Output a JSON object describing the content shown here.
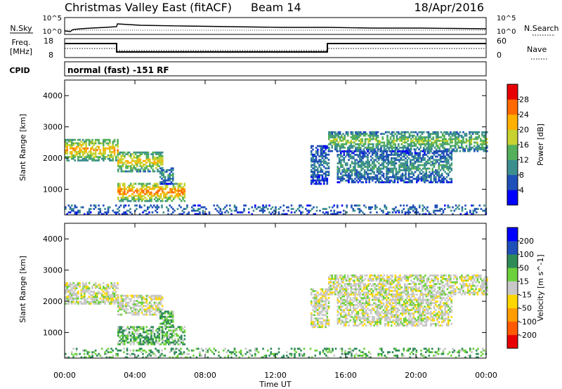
{
  "header": {
    "title": "Christmas Valley East (fitACF)",
    "beam": "Beam 14",
    "date": "18/Apr/2016"
  },
  "status_panel": {
    "nsky_label": "N.Sky",
    "nsearch_label": "N.Search",
    "freq_label_1": "Freq.",
    "freq_label_2": "[MHz]",
    "nave_label": "Nave",
    "cpid_label": "CPID",
    "cpid_text": "normal (fast) -151 RF",
    "nsky_ticks": [
      "10^5",
      "10^0"
    ],
    "nsearch_ticks": [
      "10^5",
      "10^0"
    ],
    "freq_ticks": [
      "18",
      "8"
    ],
    "nave_ticks": [
      "60",
      "0"
    ]
  },
  "chart_data": [
    {
      "type": "heatmap",
      "name": "power",
      "xlabel": "Time UT",
      "ylabel": "Slant Range [km]",
      "xlim": [
        0,
        24
      ],
      "ylim": [
        180,
        4500
      ],
      "x_ticks": [
        "00:00",
        "04:00",
        "08:00",
        "12:00",
        "16:00",
        "20:00",
        "00:00"
      ],
      "y_ticks": [
        1000,
        2000,
        3000,
        4000
      ],
      "colorbar": {
        "label": "Power [dB]",
        "ticks": [
          4,
          8,
          12,
          16,
          20,
          24,
          28
        ],
        "colors": [
          "#0000ff",
          "#1f4fb8",
          "#3d8f8f",
          "#55b05b",
          "#c8d230",
          "#ffb000",
          "#ff6a00",
          "#e80000"
        ],
        "range": [
          0,
          32
        ]
      },
      "regions": [
        {
          "t": [
            0.0,
            3.0
          ],
          "r": [
            1900,
            2600
          ],
          "level": 20
        },
        {
          "t": [
            3.0,
            5.6
          ],
          "r": [
            1550,
            2200
          ],
          "level": 18
        },
        {
          "t": [
            3.0,
            6.8
          ],
          "r": [
            600,
            1200
          ],
          "level": 22
        },
        {
          "t": [
            5.4,
            6.2
          ],
          "r": [
            1150,
            1700
          ],
          "level": 10
        },
        {
          "t": [
            14.0,
            15.0
          ],
          "r": [
            1150,
            2400
          ],
          "level": 8
        },
        {
          "t": [
            15.0,
            24.0
          ],
          "r": [
            2200,
            2850
          ],
          "level": 14
        },
        {
          "t": [
            15.5,
            22.0
          ],
          "r": [
            1200,
            2200
          ],
          "level": 10
        },
        {
          "t": [
            0.0,
            24.0
          ],
          "r": [
            180,
            500
          ],
          "level": 8
        }
      ]
    },
    {
      "type": "heatmap",
      "name": "velocity",
      "xlabel": "Time UT",
      "ylabel": "Slant Range [km]",
      "xlim": [
        0,
        24
      ],
      "ylim": [
        180,
        4500
      ],
      "x_ticks": [
        "00:00",
        "04:00",
        "08:00",
        "12:00",
        "16:00",
        "20:00",
        "00:00"
      ],
      "y_ticks": [
        1000,
        2000,
        3000,
        4000
      ],
      "colorbar": {
        "label": "Velocity [m s^-1]",
        "ticks": [
          200,
          100,
          50,
          15,
          -15,
          -50,
          -100,
          -200
        ],
        "colors": [
          "#0000ff",
          "#1f4fb8",
          "#2e8b57",
          "#6cd13a",
          "#c8c8c8",
          "#ffd700",
          "#ff9d00",
          "#ff5a00",
          "#e80000"
        ]
      },
      "regions": [
        {
          "t": [
            0.0,
            3.0
          ],
          "r": [
            1900,
            2600
          ],
          "velocity": 0
        },
        {
          "t": [
            3.0,
            5.6
          ],
          "r": [
            1550,
            2200
          ],
          "velocity": 0
        },
        {
          "t": [
            3.0,
            6.8
          ],
          "r": [
            600,
            1200
          ],
          "velocity": 30
        },
        {
          "t": [
            5.4,
            6.2
          ],
          "r": [
            1150,
            1700
          ],
          "velocity": 30
        },
        {
          "t": [
            14.0,
            15.0
          ],
          "r": [
            1150,
            2400
          ],
          "velocity": 0
        },
        {
          "t": [
            15.0,
            24.0
          ],
          "r": [
            2200,
            2850
          ],
          "velocity": 0
        },
        {
          "t": [
            15.5,
            22.0
          ],
          "r": [
            1200,
            2200
          ],
          "velocity": 0
        },
        {
          "t": [
            0.0,
            24.0
          ],
          "r": [
            180,
            500
          ],
          "velocity": 30
        }
      ]
    }
  ]
}
